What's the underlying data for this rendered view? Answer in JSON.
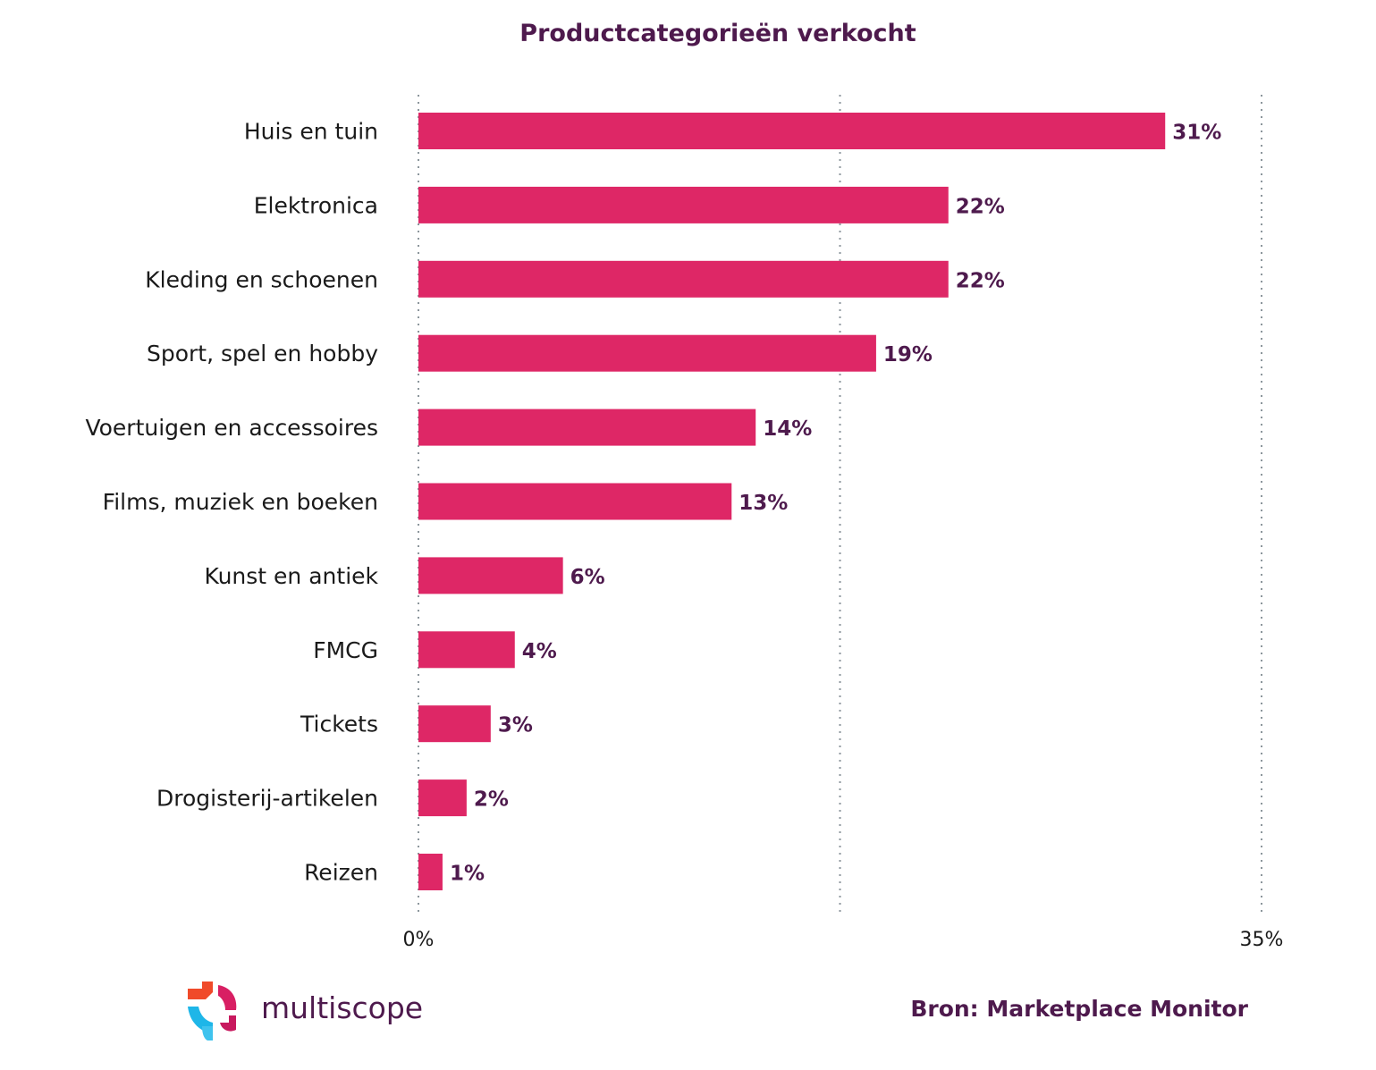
{
  "chart_data": {
    "type": "bar",
    "orientation": "horizontal",
    "title": "Productcategorieën verkocht",
    "categories": [
      "Huis en tuin",
      "Elektronica",
      "Kleding en schoenen",
      "Sport, spel en hobby",
      "Voertuigen en accessoires",
      "Films, muziek en boeken",
      "Kunst en antiek",
      "FMCG",
      "Tickets",
      "Drogisterij-artikelen",
      "Reizen"
    ],
    "values": [
      31,
      22,
      22,
      19,
      14,
      13,
      6,
      4,
      3,
      2,
      1
    ],
    "value_labels": [
      "31%",
      "22%",
      "22%",
      "19%",
      "14%",
      "13%",
      "6%",
      "4%",
      "3%",
      "2%",
      "1%"
    ],
    "xlim": [
      0,
      35
    ],
    "gridline_values": [
      0,
      17.5,
      35
    ],
    "tick_labels": [
      "0%",
      "35%"
    ],
    "grid": true,
    "bar_color": "#de2766",
    "label_color": "#4e1a4d"
  },
  "footer": {
    "brand": "multiscope",
    "source": "Bron: Marketplace Monitor"
  }
}
